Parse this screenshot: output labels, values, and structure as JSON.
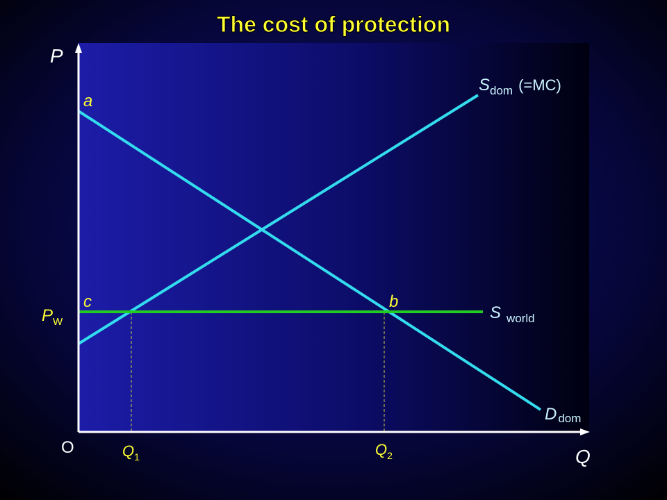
{
  "title": "The cost of protection",
  "axes": {
    "y": "P",
    "x": "Q",
    "origin": "O"
  },
  "points": [
    "a",
    "c",
    "b"
  ],
  "price": {
    "main": "P",
    "sub": "W"
  },
  "quantities": [
    {
      "main": "Q",
      "sub": "1"
    },
    {
      "main": "Q",
      "sub": "2"
    }
  ],
  "curves": {
    "supply": {
      "main": "S",
      "sub": "dom",
      "suffix": "(=MC)"
    },
    "world": {
      "main": "S",
      "sub": "world"
    },
    "demand": {
      "main": "D",
      "sub": "dom"
    }
  }
}
